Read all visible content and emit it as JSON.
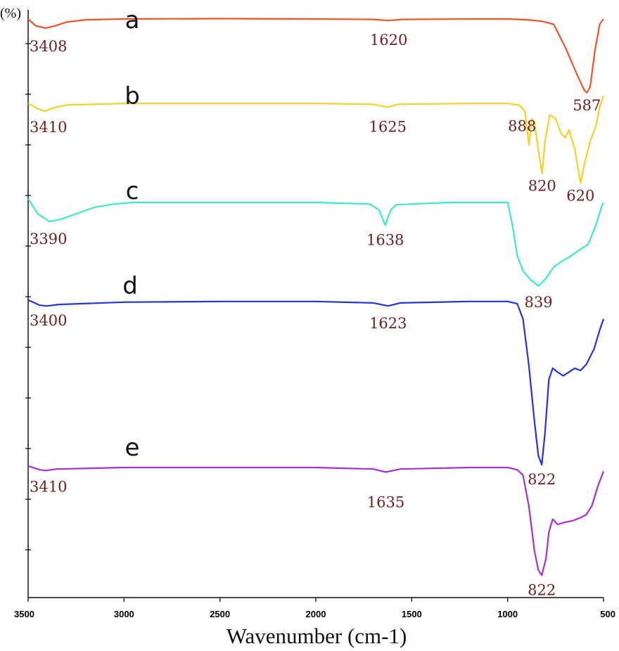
{
  "chart_data": {
    "type": "line",
    "title": "",
    "ylabel": "(%)",
    "xlabel": "Wavenumber (cm-1)",
    "xlim": [
      3500,
      500
    ],
    "x_reversed": true,
    "x_ticks": [
      "3500",
      "3000",
      "2500",
      "2000",
      "1500",
      "1000",
      "500"
    ],
    "grid": false,
    "legend": "none",
    "series": [
      {
        "name": "a",
        "color": "#e8562a",
        "points": [
          [
            3500,
            0.12
          ],
          [
            3460,
            0.03
          ],
          [
            3408,
            0.0
          ],
          [
            3360,
            0.03
          ],
          [
            3300,
            0.08
          ],
          [
            3200,
            0.11
          ],
          [
            3000,
            0.12
          ],
          [
            2500,
            0.125
          ],
          [
            2000,
            0.12
          ],
          [
            1700,
            0.115
          ],
          [
            1620,
            0.1
          ],
          [
            1550,
            0.115
          ],
          [
            1200,
            0.12
          ],
          [
            1000,
            0.12
          ],
          [
            900,
            0.11
          ],
          [
            820,
            0.09
          ],
          [
            760,
            0.05
          ],
          [
            700,
            -0.25
          ],
          [
            640,
            -0.6
          ],
          [
            600,
            -0.82
          ],
          [
            587,
            -0.85
          ],
          [
            570,
            -0.78
          ],
          [
            545,
            -0.3
          ],
          [
            520,
            0.05
          ],
          [
            500,
            0.12
          ]
        ],
        "peak_labels": [
          {
            "x": 3408,
            "text": "3408"
          },
          {
            "x": 1620,
            "text": "1620"
          },
          {
            "x": 587,
            "text": "587"
          }
        ]
      },
      {
        "name": "b",
        "color": "#f2d22a",
        "points": [
          [
            3500,
            0.1
          ],
          [
            3440,
            0.02
          ],
          [
            3410,
            0.0
          ],
          [
            3370,
            0.04
          ],
          [
            3300,
            0.08
          ],
          [
            3000,
            0.1
          ],
          [
            2500,
            0.1
          ],
          [
            2000,
            0.1
          ],
          [
            1700,
            0.09
          ],
          [
            1625,
            0.05
          ],
          [
            1570,
            0.09
          ],
          [
            1200,
            0.1
          ],
          [
            1000,
            0.1
          ],
          [
            940,
            0.08
          ],
          [
            910,
            0.0
          ],
          [
            888,
            -0.45
          ],
          [
            875,
            -0.1
          ],
          [
            860,
            -0.15
          ],
          [
            835,
            -0.6
          ],
          [
            820,
            -0.82
          ],
          [
            805,
            -0.4
          ],
          [
            780,
            -0.05
          ],
          [
            750,
            -0.1
          ],
          [
            720,
            -0.3
          ],
          [
            700,
            -0.35
          ],
          [
            680,
            -0.25
          ],
          [
            650,
            -0.5
          ],
          [
            620,
            -0.95
          ],
          [
            600,
            -0.7
          ],
          [
            570,
            -0.4
          ],
          [
            540,
            -0.2
          ],
          [
            520,
            0.05
          ],
          [
            500,
            0.2
          ]
        ],
        "peak_labels": [
          {
            "x": 3410,
            "text": "3410"
          },
          {
            "x": 1625,
            "text": "1625"
          },
          {
            "x": 888,
            "text": "888"
          },
          {
            "x": 820,
            "text": "820"
          },
          {
            "x": 620,
            "text": "620"
          }
        ]
      },
      {
        "name": "c",
        "color": "#3fe8c8",
        "points": [
          [
            3500,
            0.05
          ],
          [
            3450,
            -0.15
          ],
          [
            3390,
            -0.25
          ],
          [
            3340,
            -0.23
          ],
          [
            3250,
            -0.15
          ],
          [
            3150,
            -0.06
          ],
          [
            3050,
            -0.02
          ],
          [
            2950,
            0.0
          ],
          [
            2500,
            0.0
          ],
          [
            2000,
            0.0
          ],
          [
            1720,
            -0.02
          ],
          [
            1670,
            -0.1
          ],
          [
            1638,
            -0.3
          ],
          [
            1610,
            -0.1
          ],
          [
            1580,
            -0.03
          ],
          [
            1300,
            0.0
          ],
          [
            1050,
            0.0
          ],
          [
            1000,
            0.0
          ],
          [
            975,
            -0.3
          ],
          [
            950,
            -0.7
          ],
          [
            920,
            -0.9
          ],
          [
            880,
            -1.02
          ],
          [
            839,
            -1.1
          ],
          [
            800,
            -1.0
          ],
          [
            760,
            -0.85
          ],
          [
            720,
            -0.78
          ],
          [
            680,
            -0.72
          ],
          [
            640,
            -0.65
          ],
          [
            580,
            -0.55
          ],
          [
            540,
            -0.3
          ],
          [
            510,
            -0.05
          ],
          [
            500,
            0.0
          ]
        ],
        "peak_labels": [
          {
            "x": 3390,
            "text": "3390"
          },
          {
            "x": 1638,
            "text": "1638"
          },
          {
            "x": 839,
            "text": "839"
          }
        ]
      },
      {
        "name": "d",
        "color": "#2534d6",
        "points": [
          [
            3500,
            0.05
          ],
          [
            3440,
            -0.02
          ],
          [
            3400,
            -0.03
          ],
          [
            3340,
            -0.01
          ],
          [
            3000,
            0.02
          ],
          [
            2500,
            0.03
          ],
          [
            2000,
            0.03
          ],
          [
            1700,
            0.01
          ],
          [
            1623,
            -0.03
          ],
          [
            1560,
            0.01
          ],
          [
            1200,
            0.03
          ],
          [
            1000,
            0.03
          ],
          [
            950,
            0.0
          ],
          [
            920,
            -0.2
          ],
          [
            890,
            -0.8
          ],
          [
            860,
            -1.55
          ],
          [
            840,
            -2.0
          ],
          [
            822,
            -2.12
          ],
          [
            805,
            -1.7
          ],
          [
            785,
            -1.0
          ],
          [
            765,
            -0.85
          ],
          [
            740,
            -0.9
          ],
          [
            710,
            -0.95
          ],
          [
            680,
            -0.9
          ],
          [
            650,
            -0.85
          ],
          [
            620,
            -0.88
          ],
          [
            590,
            -0.8
          ],
          [
            550,
            -0.6
          ],
          [
            520,
            -0.35
          ],
          [
            500,
            -0.2
          ]
        ],
        "peak_labels": [
          {
            "x": 3400,
            "text": "3400"
          },
          {
            "x": 1623,
            "text": "1623"
          },
          {
            "x": 822,
            "text": "822"
          }
        ]
      },
      {
        "name": "e",
        "color": "#a72fd6",
        "points": [
          [
            3500,
            0.02
          ],
          [
            3440,
            -0.03
          ],
          [
            3410,
            -0.04
          ],
          [
            3350,
            -0.02
          ],
          [
            3000,
            0.0
          ],
          [
            2500,
            0.0
          ],
          [
            2000,
            0.0
          ],
          [
            1700,
            -0.02
          ],
          [
            1635,
            -0.06
          ],
          [
            1560,
            -0.02
          ],
          [
            1200,
            0.0
          ],
          [
            1000,
            0.0
          ],
          [
            950,
            -0.03
          ],
          [
            920,
            -0.1
          ],
          [
            890,
            -0.5
          ],
          [
            860,
            -1.1
          ],
          [
            840,
            -1.35
          ],
          [
            822,
            -1.42
          ],
          [
            800,
            -1.2
          ],
          [
            785,
            -0.85
          ],
          [
            765,
            -0.68
          ],
          [
            740,
            -0.75
          ],
          [
            700,
            -0.72
          ],
          [
            660,
            -0.7
          ],
          [
            620,
            -0.66
          ],
          [
            590,
            -0.62
          ],
          [
            560,
            -0.5
          ],
          [
            530,
            -0.25
          ],
          [
            500,
            -0.05
          ]
        ],
        "peak_labels": [
          {
            "x": 3410,
            "text": "3410"
          },
          {
            "x": 1635,
            "text": "1635"
          },
          {
            "x": 822,
            "text": "822"
          }
        ]
      }
    ]
  }
}
